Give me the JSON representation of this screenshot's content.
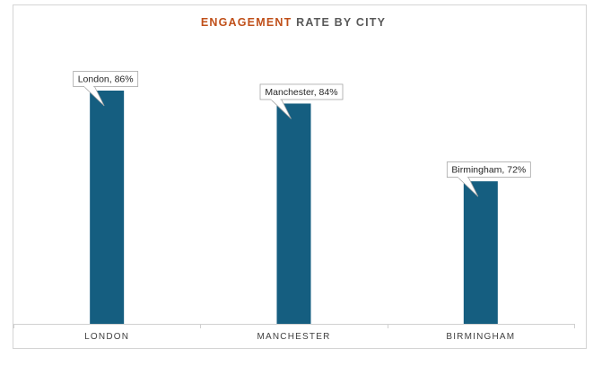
{
  "chart_data": {
    "type": "bar",
    "title_highlight": "ENGAGEMENT",
    "title_rest": " RATE BY CITY",
    "categories": [
      "LONDON",
      "MANCHESTER",
      "BIRMINGHAM"
    ],
    "values": [
      86,
      84,
      72
    ],
    "data_labels": [
      "London, 86%",
      "Manchester, 84%",
      "Birmingham, 72%"
    ],
    "ylim": [
      50,
      90
    ],
    "grid": false,
    "legend": "none",
    "colors": {
      "bar": "#155e80",
      "title_highlight": "#c0501a",
      "title_rest": "#595959",
      "axis": "#d0d0d0",
      "callout_border": "#a6a6a6"
    }
  }
}
